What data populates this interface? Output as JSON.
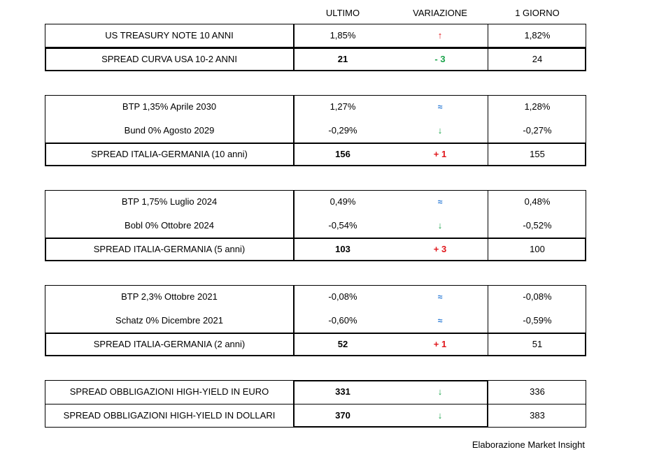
{
  "headers": {
    "last": "ULTIMO",
    "change": "VARIAZIONE",
    "prev": "1 GIORNO"
  },
  "blocks": [
    {
      "rows": [
        {
          "label": "US TREASURY NOTE 10 ANNI",
          "last": "1,85%",
          "change": "↑",
          "change_type": "up",
          "prev": "1,82%"
        },
        {
          "label": "SPREAD CURVA USA 10-2 ANNI",
          "last": "21",
          "change": "- 3",
          "change_type": "neg",
          "prev": "24"
        }
      ]
    },
    {
      "rows": [
        {
          "label": "BTP 1,35% Aprile 2030",
          "last": "1,27%",
          "change": "≈",
          "change_type": "flat",
          "prev": "1,28%"
        },
        {
          "label": "Bund 0% Agosto 2029",
          "last": "-0,29%",
          "change": "↓",
          "change_type": "down",
          "prev": "-0,27%"
        },
        {
          "label": "SPREAD ITALIA-GERMANIA (10 anni)",
          "last": "156",
          "change": "+ 1",
          "change_type": "pos",
          "prev": "155"
        }
      ]
    },
    {
      "rows": [
        {
          "label": "BTP 1,75% Luglio 2024",
          "last": "0,49%",
          "change": "≈",
          "change_type": "flat",
          "prev": "0,48%"
        },
        {
          "label": "Bobl 0% Ottobre 2024",
          "last": "-0,54%",
          "change": "↓",
          "change_type": "down",
          "prev": "-0,52%"
        },
        {
          "label": "SPREAD ITALIA-GERMANIA (5 anni)",
          "last": "103",
          "change": "+ 3",
          "change_type": "pos",
          "prev": "100"
        }
      ]
    },
    {
      "rows": [
        {
          "label": "BTP 2,3% Ottobre 2021",
          "last": "-0,08%",
          "change": "≈",
          "change_type": "flat",
          "prev": "-0,08%"
        },
        {
          "label": "Schatz 0% Dicembre 2021",
          "last": "-0,60%",
          "change": "≈",
          "change_type": "flat",
          "prev": "-0,59%"
        },
        {
          "label": "SPREAD ITALIA-GERMANIA (2 anni)",
          "last": "52",
          "change": "+ 1",
          "change_type": "pos",
          "prev": "51"
        }
      ]
    },
    {
      "rows": [
        {
          "label": "SPREAD OBBLIGAZIONI HIGH-YIELD IN EURO",
          "last": "331",
          "change": "↓",
          "change_type": "down",
          "prev": "336"
        },
        {
          "label": "SPREAD OBBLIGAZIONI HIGH-YIELD IN DOLLARI",
          "last": "370",
          "change": "↓",
          "change_type": "down",
          "prev": "383"
        }
      ]
    }
  ],
  "footer": "Elaborazione Market Insight",
  "colors": {
    "up": "#e0161b",
    "down": "#1aa34a",
    "flat": "#2b7bd6"
  }
}
